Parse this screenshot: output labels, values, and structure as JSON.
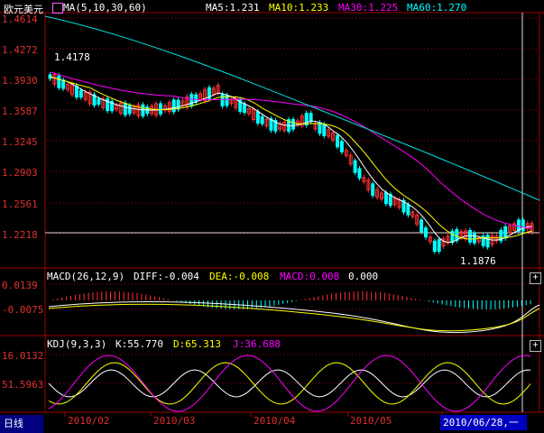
{
  "symbol": "欧元美元",
  "ma_label": "MA(5,10,30,60)",
  "ma5": "MA5:1.231",
  "ma10": "MA10:1.233",
  "ma30": "MA30:1.225",
  "ma60": "MA60:1.270",
  "high_marker": "1.4178",
  "low_marker": "1.1876",
  "price_ticks": [
    "1.4614",
    "1.4272",
    "1.3930",
    "1.3587",
    "1.3245",
    "1.2903",
    "1.2561",
    "1.2218"
  ],
  "macd_label": "MACD(26,12,9)",
  "macd_diff": "DIFF:-0.004",
  "macd_dea": "DEA:-0.008",
  "macd_macd": "MACD:0.008",
  "macd_extra": "0.000",
  "macd_ticks": [
    "0.0139",
    "-0.0075"
  ],
  "kdj_label": "KDJ(9,3,3)",
  "kdj_k": "K:55.770",
  "kdj_d": "D:65.313",
  "kdj_j": "J:36.688",
  "kdj_ticks": [
    "16.0132",
    "51.5963"
  ],
  "period_tab": "日线",
  "months": [
    "2010/02",
    "2010/03",
    "2010/04",
    "2010/05"
  ],
  "cursor_date": "2010/06/28,一",
  "colors": {
    "up": "#ff3030",
    "down": "#00ffff",
    "ma5": "#ffffff",
    "ma10": "#ffff00",
    "ma30": "#ff00ff",
    "ma60": "#00e0e0",
    "grid": "#a00000"
  }
}
